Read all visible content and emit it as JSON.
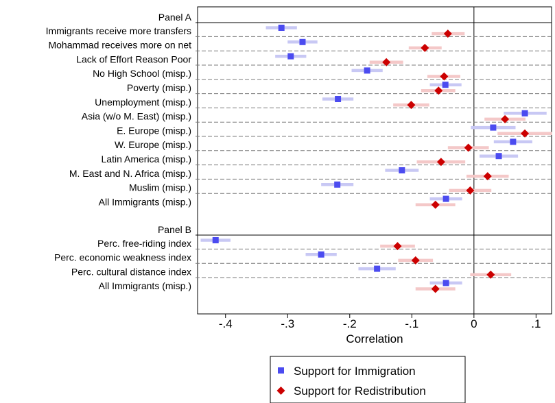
{
  "chart_data": {
    "type": "scatter",
    "xlabel": "Correlation",
    "xlim": [
      -0.445,
      0.125
    ],
    "x_ticks": [
      -0.4,
      -0.3,
      -0.2,
      -0.1,
      0,
      0.1
    ],
    "x_tick_labels": [
      "-.4",
      "-.3",
      "-.2",
      "-.1",
      "0",
      ".1"
    ],
    "legend": {
      "placement": "bottom",
      "entries": [
        {
          "label": "Support for Immigration",
          "color": "#4b4bf0",
          "ci_color": "#c8c8f4",
          "marker": "square"
        },
        {
          "label": "Support for Redistribution",
          "color": "#cc0000",
          "ci_color": "#f4c8c8",
          "marker": "diamond"
        }
      ]
    },
    "panels": [
      {
        "label": "Panel A",
        "rows": [
          {
            "label": "Immigrants receive more transfers",
            "immigration": {
              "v": -0.31,
              "lo": -0.335,
              "hi": -0.285
            },
            "redistribution": {
              "v": -0.042,
              "lo": -0.068,
              "hi": -0.015
            }
          },
          {
            "label": "Mohammad receives more on net",
            "immigration": {
              "v": -0.276,
              "lo": -0.3,
              "hi": -0.252
            },
            "redistribution": {
              "v": -0.079,
              "lo": -0.105,
              "hi": -0.052
            }
          },
          {
            "label": "Lack of Effort Reason Poor",
            "immigration": {
              "v": -0.295,
              "lo": -0.32,
              "hi": -0.27
            },
            "redistribution": {
              "v": -0.141,
              "lo": -0.168,
              "hi": -0.114
            }
          },
          {
            "label": "No High School (misp.)",
            "immigration": {
              "v": -0.172,
              "lo": -0.197,
              "hi": -0.147
            },
            "redistribution": {
              "v": -0.048,
              "lo": -0.075,
              "hi": -0.022
            }
          },
          {
            "label": "Poverty (misp.)",
            "immigration": {
              "v": -0.046,
              "lo": -0.071,
              "hi": -0.02
            },
            "redistribution": {
              "v": -0.057,
              "lo": -0.085,
              "hi": -0.03
            }
          },
          {
            "label": "Unemployment (misp.)",
            "immigration": {
              "v": -0.219,
              "lo": -0.244,
              "hi": -0.194
            },
            "redistribution": {
              "v": -0.101,
              "lo": -0.13,
              "hi": -0.072
            }
          },
          {
            "label": "Asia (w/o M. East) (misp.)",
            "immigration": {
              "v": 0.082,
              "lo": 0.048,
              "hi": 0.117
            },
            "redistribution": {
              "v": 0.05,
              "lo": 0.017,
              "hi": 0.083
            }
          },
          {
            "label": "E. Europe (misp.)",
            "immigration": {
              "v": 0.031,
              "lo": -0.005,
              "hi": 0.067
            },
            "redistribution": {
              "v": 0.082,
              "lo": 0.038,
              "hi": 0.126
            }
          },
          {
            "label": "W. Europe (misp.)",
            "immigration": {
              "v": 0.063,
              "lo": 0.032,
              "hi": 0.094
            },
            "redistribution": {
              "v": -0.009,
              "lo": -0.042,
              "hi": 0.024
            }
          },
          {
            "label": "Latin America (misp.)",
            "immigration": {
              "v": 0.04,
              "lo": 0.009,
              "hi": 0.071
            },
            "redistribution": {
              "v": -0.053,
              "lo": -0.092,
              "hi": -0.014
            }
          },
          {
            "label": "M. East and N. Africa (misp.)",
            "immigration": {
              "v": -0.116,
              "lo": -0.143,
              "hi": -0.089
            },
            "redistribution": {
              "v": 0.022,
              "lo": -0.012,
              "hi": 0.056
            }
          },
          {
            "label": "Muslim (misp.)",
            "immigration": {
              "v": -0.22,
              "lo": -0.246,
              "hi": -0.194
            },
            "redistribution": {
              "v": -0.006,
              "lo": -0.04,
              "hi": 0.028
            }
          },
          {
            "label": "All Immigrants (misp.)",
            "immigration": {
              "v": -0.045,
              "lo": -0.071,
              "hi": -0.019
            },
            "redistribution": {
              "v": -0.062,
              "lo": -0.094,
              "hi": -0.03
            }
          }
        ]
      },
      {
        "label": "Panel B",
        "rows": [
          {
            "label": "Perc. free-riding index",
            "immigration": {
              "v": -0.416,
              "lo": -0.44,
              "hi": -0.392
            },
            "redistribution": {
              "v": -0.123,
              "lo": -0.151,
              "hi": -0.095
            }
          },
          {
            "label": "Perc. economic weakness index",
            "immigration": {
              "v": -0.246,
              "lo": -0.271,
              "hi": -0.221
            },
            "redistribution": {
              "v": -0.094,
              "lo": -0.122,
              "hi": -0.066
            }
          },
          {
            "label": "Perc. cultural distance index",
            "immigration": {
              "v": -0.156,
              "lo": -0.186,
              "hi": -0.126
            },
            "redistribution": {
              "v": 0.027,
              "lo": -0.006,
              "hi": 0.06
            }
          },
          {
            "label": "All Immigrants (misp.)",
            "immigration": {
              "v": -0.045,
              "lo": -0.071,
              "hi": -0.019
            },
            "redistribution": {
              "v": -0.062,
              "lo": -0.094,
              "hi": -0.03
            }
          }
        ]
      }
    ]
  }
}
